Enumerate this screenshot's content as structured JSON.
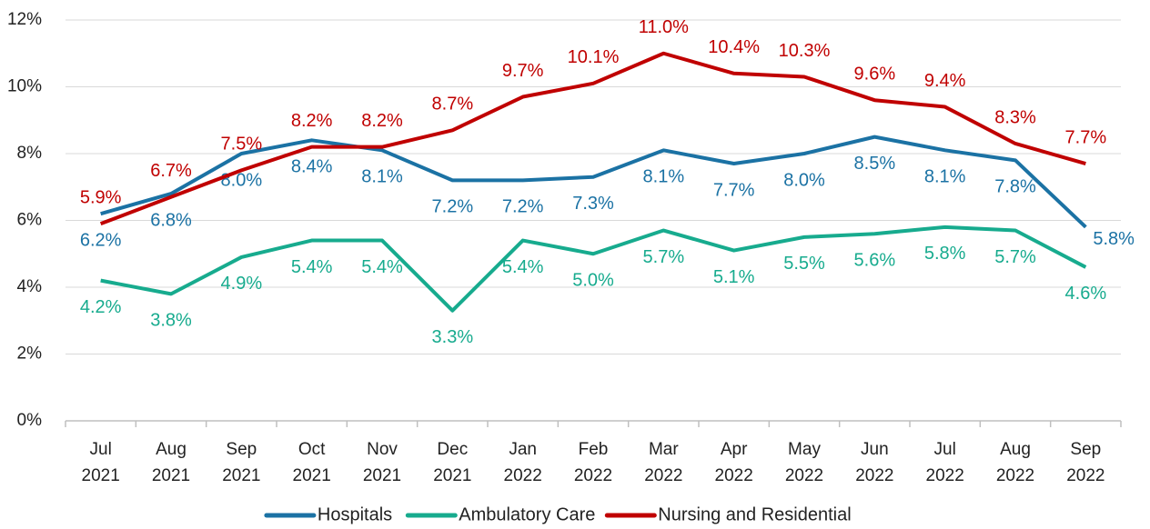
{
  "chart_data": {
    "type": "line",
    "categories": [
      "Jul 2021",
      "Aug 2021",
      "Sep 2021",
      "Oct 2021",
      "Nov 2021",
      "Dec 2021",
      "Jan 2022",
      "Feb 2022",
      "Mar 2022",
      "Apr 2022",
      "May 2022",
      "Jun 2022",
      "Jul 2022",
      "Aug 2022",
      "Sep 2022"
    ],
    "series": [
      {
        "name": "Hospitals",
        "color": "#1b72a4",
        "values": [
          6.2,
          6.8,
          8.0,
          8.4,
          8.1,
          7.2,
          7.2,
          7.3,
          8.1,
          7.7,
          8.0,
          8.5,
          8.1,
          7.8,
          5.8
        ],
        "value_labels": [
          "6.2%",
          "6.8%",
          "8.0%",
          "8.4%",
          "8.1%",
          "7.2%",
          "7.2%",
          "7.3%",
          "8.1%",
          "7.7%",
          "8.0%",
          "8.5%",
          "8.1%",
          "7.8%",
          "5.8%"
        ]
      },
      {
        "name": "Ambulatory Care",
        "color": "#17ab8e",
        "values": [
          4.2,
          3.8,
          4.9,
          5.4,
          5.4,
          3.3,
          5.4,
          5.0,
          5.7,
          5.1,
          5.5,
          5.6,
          5.8,
          5.7,
          4.6
        ],
        "value_labels": [
          "4.2%",
          "3.8%",
          "4.9%",
          "5.4%",
          "5.4%",
          "3.3%",
          "5.4%",
          "5.0%",
          "5.7%",
          "5.1%",
          "5.5%",
          "5.6%",
          "5.8%",
          "5.7%",
          "4.6%"
        ]
      },
      {
        "name": "Nursing and Residential",
        "color": "#c00000",
        "values": [
          5.9,
          6.7,
          7.5,
          8.2,
          8.2,
          8.7,
          9.7,
          10.1,
          11.0,
          10.4,
          10.3,
          9.6,
          9.4,
          8.3,
          7.7
        ],
        "value_labels": [
          "5.9%",
          "6.7%",
          "7.5%",
          "8.2%",
          "8.2%",
          "8.7%",
          "9.7%",
          "10.1%",
          "11.0%",
          "10.4%",
          "10.3%",
          "9.6%",
          "9.4%",
          "8.3%",
          "7.7%"
        ]
      }
    ],
    "ylim": [
      0,
      12
    ],
    "yticks": [
      {
        "value": 0,
        "label": "0%"
      },
      {
        "value": 2,
        "label": "2%"
      },
      {
        "value": 4,
        "label": "4%"
      },
      {
        "value": 6,
        "label": "6%"
      },
      {
        "value": 8,
        "label": "8%"
      },
      {
        "value": 10,
        "label": "10%"
      },
      {
        "value": 12,
        "label": "12%"
      }
    ],
    "grid": true,
    "legend": "bottom"
  }
}
